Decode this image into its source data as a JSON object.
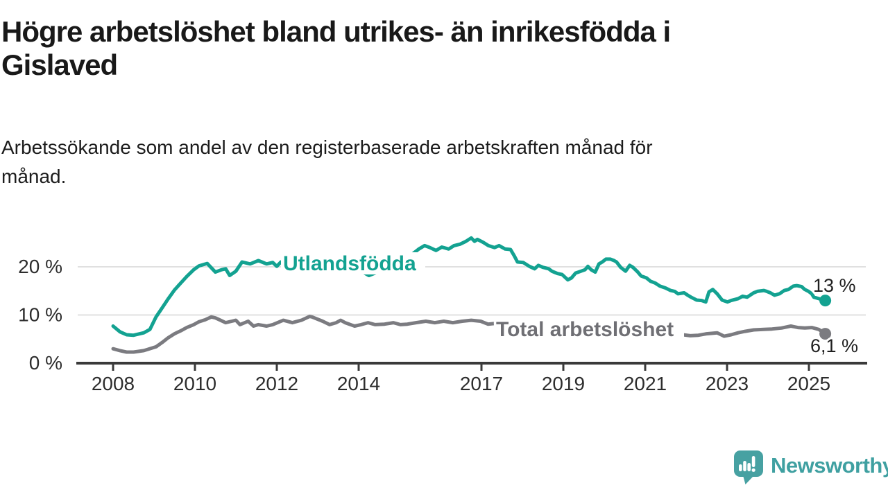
{
  "header": {
    "title_lines": [
      "Högre arbetslöshet bland utrikes- än inrikesfödda i",
      "Gislaved"
    ],
    "subtitle_lines": [
      "Arbetssökande som andel av den registerbaserade arbetskraften månad för",
      "månad."
    ]
  },
  "footer": {
    "brand": "Newsworthy",
    "logo_color": "#47A1A2"
  },
  "colors": {
    "background": "#ffffff",
    "axis": "#3a3a3a",
    "grid": "#e0e0e0",
    "axis_text": "#2d2d2d",
    "value_label_text": "#1f1f1f",
    "series_teal": "#13A291",
    "series_gray": "#7B7B80",
    "series_gray_label": "#6F6F74"
  },
  "chart_data": {
    "type": "line",
    "title": "Högre arbetslöshet bland utrikes- än inrikesfödda i Gislaved",
    "subtitle": "Arbetssökande som andel av den registerbaserade arbetskraften månad för månad.",
    "unit": "%",
    "grid": "horizontal",
    "legend": "inline-labels",
    "x_axis": {
      "range": [
        2007.6,
        2026.4
      ],
      "tick_years": [
        2008,
        2010,
        2012,
        2014,
        2017,
        2019,
        2021,
        2023,
        2025
      ],
      "tick_labels": [
        "2008",
        "2010",
        "2012",
        "2014",
        "2017",
        "2019",
        "2021",
        "2023",
        "2025"
      ]
    },
    "y_axis": {
      "range": [
        0,
        27
      ],
      "ticks": [
        {
          "value": 0,
          "label": "0 %"
        },
        {
          "value": 10,
          "label": "10 %"
        },
        {
          "value": 20,
          "label": "20 %"
        }
      ]
    },
    "series": [
      {
        "name": "Utlandsfödda",
        "color": "#13A291",
        "end_value": 13,
        "end_label": "13 %",
        "points": [
          [
            2008.0,
            7.7
          ],
          [
            2008.17,
            6.5
          ],
          [
            2008.33,
            5.9
          ],
          [
            2008.5,
            5.8
          ],
          [
            2008.75,
            6.3
          ],
          [
            2008.9,
            7.0
          ],
          [
            2009.05,
            9.6
          ],
          [
            2009.2,
            11.5
          ],
          [
            2009.35,
            13.4
          ],
          [
            2009.5,
            15.2
          ],
          [
            2009.65,
            16.6
          ],
          [
            2009.8,
            18.0
          ],
          [
            2009.97,
            19.4
          ],
          [
            2010.1,
            20.2
          ],
          [
            2010.3,
            20.7
          ],
          [
            2010.5,
            18.9
          ],
          [
            2010.65,
            19.4
          ],
          [
            2010.75,
            19.6
          ],
          [
            2010.85,
            18.2
          ],
          [
            2011.0,
            19.1
          ],
          [
            2011.15,
            21.0
          ],
          [
            2011.35,
            20.6
          ],
          [
            2011.55,
            21.3
          ],
          [
            2011.75,
            20.6
          ],
          [
            2011.9,
            20.9
          ],
          [
            2012.0,
            20.1
          ],
          [
            2012.1,
            21.0
          ],
          [
            2012.3,
            20.3
          ],
          [
            2012.5,
            20.0
          ],
          [
            2012.7,
            19.7
          ],
          [
            2012.9,
            19.5
          ],
          [
            2013.1,
            19.8
          ],
          [
            2013.3,
            20.1
          ],
          [
            2013.5,
            20.3
          ],
          [
            2013.7,
            20.0
          ],
          [
            2013.9,
            19.7
          ],
          [
            2014.1,
            18.9
          ],
          [
            2014.25,
            18.2
          ],
          [
            2014.4,
            18.7
          ],
          [
            2014.6,
            19.3
          ],
          [
            2014.8,
            19.9
          ],
          [
            2015.0,
            21.0
          ],
          [
            2015.15,
            22.0
          ],
          [
            2015.32,
            22.7
          ],
          [
            2015.47,
            23.7
          ],
          [
            2015.61,
            24.4
          ],
          [
            2015.74,
            24.0
          ],
          [
            2015.89,
            23.4
          ],
          [
            2016.03,
            24.1
          ],
          [
            2016.2,
            23.7
          ],
          [
            2016.33,
            24.4
          ],
          [
            2016.48,
            24.7
          ],
          [
            2016.62,
            25.3
          ],
          [
            2016.75,
            26.0
          ],
          [
            2016.83,
            25.3
          ],
          [
            2016.9,
            25.7
          ],
          [
            2017.04,
            25.1
          ],
          [
            2017.17,
            24.4
          ],
          [
            2017.32,
            24.0
          ],
          [
            2017.43,
            24.4
          ],
          [
            2017.58,
            23.7
          ],
          [
            2017.71,
            23.6
          ],
          [
            2017.8,
            22.3
          ],
          [
            2017.88,
            21.0
          ],
          [
            2018.02,
            20.9
          ],
          [
            2018.17,
            20.1
          ],
          [
            2018.3,
            19.6
          ],
          [
            2018.39,
            20.3
          ],
          [
            2018.5,
            19.9
          ],
          [
            2018.64,
            19.6
          ],
          [
            2018.72,
            19.1
          ],
          [
            2018.86,
            18.6
          ],
          [
            2018.97,
            18.4
          ],
          [
            2019.11,
            17.3
          ],
          [
            2019.2,
            17.7
          ],
          [
            2019.3,
            18.7
          ],
          [
            2019.43,
            19.1
          ],
          [
            2019.53,
            19.4
          ],
          [
            2019.6,
            20.1
          ],
          [
            2019.68,
            19.4
          ],
          [
            2019.78,
            18.9
          ],
          [
            2019.87,
            20.6
          ],
          [
            2019.95,
            21.0
          ],
          [
            2020.04,
            21.6
          ],
          [
            2020.15,
            21.6
          ],
          [
            2020.24,
            21.3
          ],
          [
            2020.3,
            21.0
          ],
          [
            2020.4,
            19.9
          ],
          [
            2020.52,
            19.1
          ],
          [
            2020.62,
            20.3
          ],
          [
            2020.7,
            19.9
          ],
          [
            2020.82,
            18.9
          ],
          [
            2020.9,
            18.1
          ],
          [
            2021.03,
            17.7
          ],
          [
            2021.13,
            17.0
          ],
          [
            2021.25,
            16.6
          ],
          [
            2021.36,
            16.0
          ],
          [
            2021.5,
            15.6
          ],
          [
            2021.62,
            15.1
          ],
          [
            2021.72,
            14.9
          ],
          [
            2021.8,
            14.4
          ],
          [
            2021.95,
            14.6
          ],
          [
            2022.04,
            14.1
          ],
          [
            2022.12,
            13.7
          ],
          [
            2022.26,
            13.1
          ],
          [
            2022.38,
            13.0
          ],
          [
            2022.48,
            12.7
          ],
          [
            2022.56,
            14.8
          ],
          [
            2022.65,
            15.3
          ],
          [
            2022.76,
            14.4
          ],
          [
            2022.88,
            13.1
          ],
          [
            2023.01,
            12.7
          ],
          [
            2023.1,
            13.0
          ],
          [
            2023.27,
            13.4
          ],
          [
            2023.38,
            13.9
          ],
          [
            2023.49,
            13.7
          ],
          [
            2023.65,
            14.6
          ],
          [
            2023.74,
            14.9
          ],
          [
            2023.9,
            15.1
          ],
          [
            2023.97,
            14.9
          ],
          [
            2024.06,
            14.6
          ],
          [
            2024.16,
            14.1
          ],
          [
            2024.28,
            14.4
          ],
          [
            2024.4,
            15.1
          ],
          [
            2024.5,
            15.3
          ],
          [
            2024.62,
            16.0
          ],
          [
            2024.7,
            16.1
          ],
          [
            2024.82,
            15.9
          ],
          [
            2024.9,
            15.3
          ],
          [
            2024.99,
            14.9
          ],
          [
            2025.07,
            14.4
          ],
          [
            2025.12,
            13.7
          ],
          [
            2025.24,
            13.4
          ],
          [
            2025.4,
            13.0
          ]
        ]
      },
      {
        "name": "Total arbetslöshet",
        "color": "#7B7B80",
        "end_value": 6.1,
        "end_label": "6,1 %",
        "points": [
          [
            2008.0,
            3.0
          ],
          [
            2008.17,
            2.6
          ],
          [
            2008.33,
            2.3
          ],
          [
            2008.5,
            2.3
          ],
          [
            2008.75,
            2.6
          ],
          [
            2009.05,
            3.4
          ],
          [
            2009.2,
            4.3
          ],
          [
            2009.35,
            5.3
          ],
          [
            2009.5,
            6.1
          ],
          [
            2009.65,
            6.7
          ],
          [
            2009.8,
            7.4
          ],
          [
            2009.97,
            8.0
          ],
          [
            2010.1,
            8.6
          ],
          [
            2010.25,
            9.0
          ],
          [
            2010.4,
            9.6
          ],
          [
            2010.5,
            9.4
          ],
          [
            2010.65,
            8.8
          ],
          [
            2010.75,
            8.4
          ],
          [
            2010.9,
            8.7
          ],
          [
            2011.0,
            8.9
          ],
          [
            2011.1,
            8.0
          ],
          [
            2011.3,
            8.7
          ],
          [
            2011.43,
            7.7
          ],
          [
            2011.55,
            8.0
          ],
          [
            2011.75,
            7.7
          ],
          [
            2011.9,
            8.0
          ],
          [
            2012.16,
            8.9
          ],
          [
            2012.38,
            8.4
          ],
          [
            2012.6,
            8.9
          ],
          [
            2012.8,
            9.7
          ],
          [
            2012.86,
            9.6
          ],
          [
            2013.12,
            8.7
          ],
          [
            2013.29,
            8.0
          ],
          [
            2013.45,
            8.4
          ],
          [
            2013.56,
            8.9
          ],
          [
            2013.67,
            8.4
          ],
          [
            2013.9,
            7.7
          ],
          [
            2014.06,
            8.0
          ],
          [
            2014.23,
            8.4
          ],
          [
            2014.4,
            8.0
          ],
          [
            2014.63,
            8.1
          ],
          [
            2014.85,
            8.4
          ],
          [
            2015.02,
            8.0
          ],
          [
            2015.19,
            8.1
          ],
          [
            2015.4,
            8.4
          ],
          [
            2015.64,
            8.7
          ],
          [
            2015.86,
            8.4
          ],
          [
            2016.08,
            8.7
          ],
          [
            2016.3,
            8.4
          ],
          [
            2016.53,
            8.7
          ],
          [
            2016.75,
            8.9
          ],
          [
            2016.98,
            8.7
          ],
          [
            2017.16,
            8.1
          ],
          [
            2017.4,
            8.3
          ],
          [
            2017.7,
            8.0
          ],
          [
            2018.0,
            7.7
          ],
          [
            2018.3,
            7.4
          ],
          [
            2018.6,
            7.2
          ],
          [
            2018.9,
            7.0
          ],
          [
            2019.2,
            6.8
          ],
          [
            2019.5,
            6.8
          ],
          [
            2019.8,
            7.0
          ],
          [
            2020.1,
            7.6
          ],
          [
            2020.35,
            8.4
          ],
          [
            2020.6,
            8.6
          ],
          [
            2020.85,
            8.1
          ],
          [
            2021.1,
            7.5
          ],
          [
            2021.4,
            6.9
          ],
          [
            2021.7,
            6.3
          ],
          [
            2021.92,
            5.9
          ],
          [
            2022.1,
            5.7
          ],
          [
            2022.3,
            5.8
          ],
          [
            2022.5,
            6.1
          ],
          [
            2022.76,
            6.3
          ],
          [
            2022.93,
            5.6
          ],
          [
            2023.1,
            5.9
          ],
          [
            2023.27,
            6.3
          ],
          [
            2023.44,
            6.6
          ],
          [
            2023.65,
            6.9
          ],
          [
            2023.9,
            7.0
          ],
          [
            2024.1,
            7.1
          ],
          [
            2024.33,
            7.3
          ],
          [
            2024.56,
            7.7
          ],
          [
            2024.73,
            7.4
          ],
          [
            2024.9,
            7.3
          ],
          [
            2025.07,
            7.4
          ],
          [
            2025.24,
            7.0
          ],
          [
            2025.4,
            6.1
          ]
        ]
      }
    ]
  }
}
